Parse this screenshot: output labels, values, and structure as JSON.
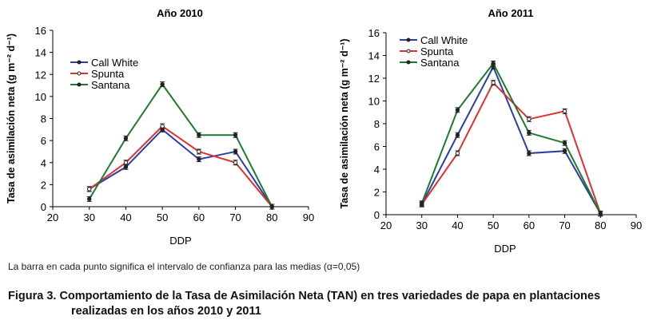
{
  "chart_data": [
    {
      "type": "line",
      "title": "Año 2010",
      "xlabel": "DDP",
      "ylabel": "Tasa de asimilación neta (g m⁻² d⁻¹)",
      "x": [
        30,
        40,
        50,
        60,
        70,
        80
      ],
      "xlim": [
        20,
        90
      ],
      "ylim": [
        0,
        16
      ],
      "xticks": [
        "20",
        "30",
        "40",
        "50",
        "60",
        "70",
        "80",
        "90"
      ],
      "yticks": [
        "0",
        "2",
        "4",
        "6",
        "8",
        "10",
        "12",
        "14",
        "16"
      ],
      "legend": "top-left",
      "error_bars": true,
      "series": [
        {
          "name": "Call White",
          "color": "#2b3fa3",
          "values": [
            1.6,
            3.6,
            7.0,
            4.3,
            5.0,
            0
          ]
        },
        {
          "name": "Spunta",
          "color": "#e03030",
          "values": [
            1.6,
            4.0,
            7.3,
            5.0,
            4.0,
            0
          ]
        },
        {
          "name": "Santana",
          "color": "#1f7a2e",
          "values": [
            0.7,
            6.2,
            11.1,
            6.5,
            6.5,
            0
          ]
        }
      ]
    },
    {
      "type": "line",
      "title": "Año 2011",
      "xlabel": "DDP",
      "ylabel": "Tasa de asimilación neta (g m⁻² d⁻¹)",
      "x": [
        30,
        40,
        50,
        60,
        70,
        80
      ],
      "xlim": [
        20,
        90
      ],
      "ylim": [
        0,
        16
      ],
      "xticks": [
        "20",
        "30",
        "40",
        "50",
        "60",
        "70",
        "80",
        "90"
      ],
      "yticks": [
        "0",
        "2",
        "4",
        "6",
        "8",
        "10",
        "12",
        "14",
        "16"
      ],
      "legend": "top-left",
      "error_bars": true,
      "series": [
        {
          "name": "Call White",
          "color": "#2b3fa3",
          "values": [
            0.9,
            7.0,
            13.0,
            5.4,
            5.6,
            0.1
          ]
        },
        {
          "name": "Spunta",
          "color": "#e03030",
          "values": [
            0.9,
            5.4,
            11.6,
            8.4,
            9.1,
            0.1
          ]
        },
        {
          "name": "Santana",
          "color": "#1f7a2e",
          "values": [
            1.0,
            9.2,
            13.3,
            7.2,
            6.3,
            0.1
          ]
        }
      ]
    }
  ],
  "note": "La barra en cada punto significa el intervalo de confianza para las medias (α=0,05)",
  "caption": {
    "line1": "Figura 3. Comportamiento de la Tasa de Asimilación Neta (TAN) en tres variedades de papa en plantaciones",
    "line2": "realizadas en los años 2010 y 2011"
  }
}
